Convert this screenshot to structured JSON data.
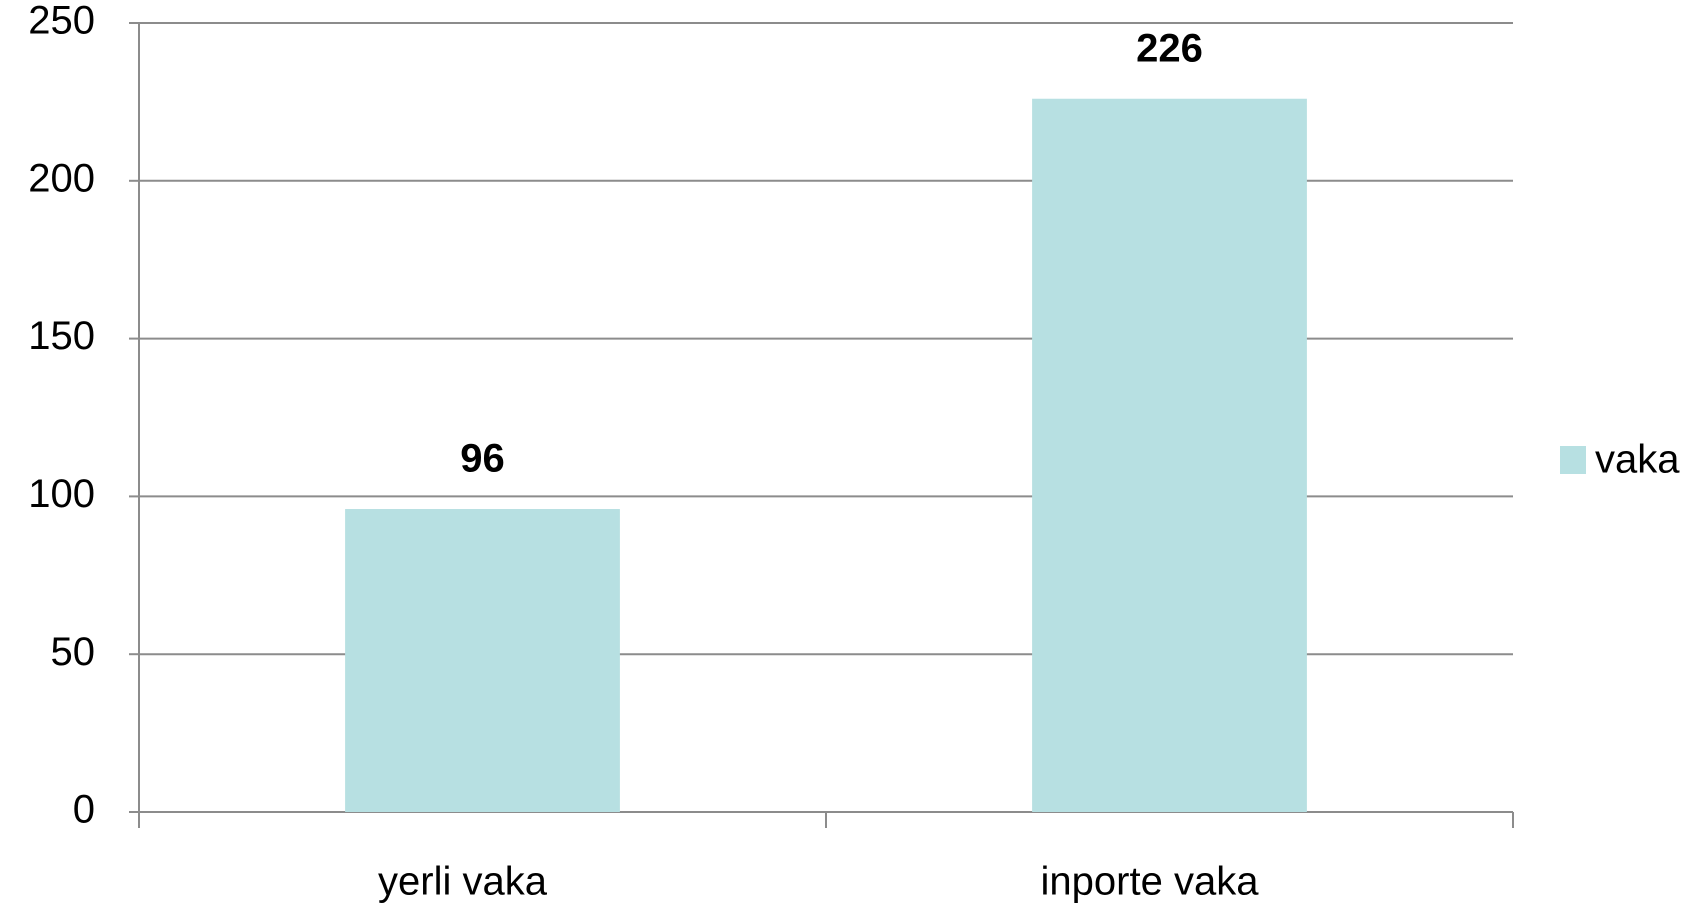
{
  "chart_data": {
    "type": "bar",
    "categories": [
      "yerli vaka",
      "inporte vaka"
    ],
    "series": [
      {
        "name": "vaka",
        "color": "#b7e0e2",
        "values": [
          96,
          226
        ]
      }
    ],
    "ylim": [
      0,
      250
    ],
    "yticks": [
      0,
      50,
      100,
      150,
      200,
      250
    ],
    "grid": true,
    "legend": "right"
  }
}
